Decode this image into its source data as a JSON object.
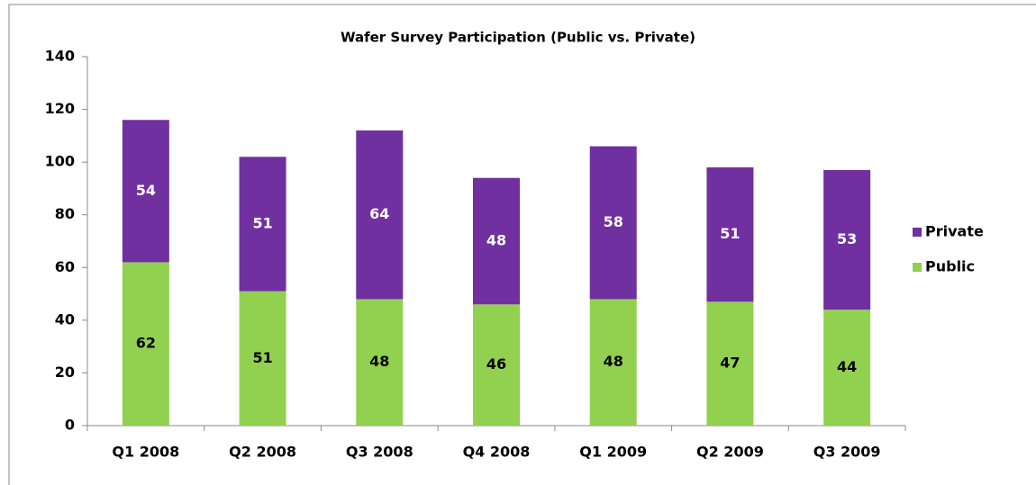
{
  "chart_data": {
    "type": "stacked_bar",
    "title": "Wafer Survey Participation (Public vs. Private)",
    "categories": [
      "Q1 2008",
      "Q2 2008",
      "Q3 2008",
      "Q4 2008",
      "Q1 2009",
      "Q2 2009",
      "Q3 2009"
    ],
    "series": [
      {
        "name": "Public",
        "color": "#92d050",
        "values": [
          62,
          51,
          48,
          46,
          48,
          47,
          44
        ]
      },
      {
        "name": "Private",
        "color": "#7030a0",
        "values": [
          54,
          51,
          64,
          48,
          58,
          51,
          53
        ]
      }
    ],
    "ylim": [
      0,
      140
    ],
    "yticks": [
      0,
      20,
      40,
      60,
      80,
      100,
      120,
      140
    ],
    "grid": false,
    "legend": "right"
  }
}
